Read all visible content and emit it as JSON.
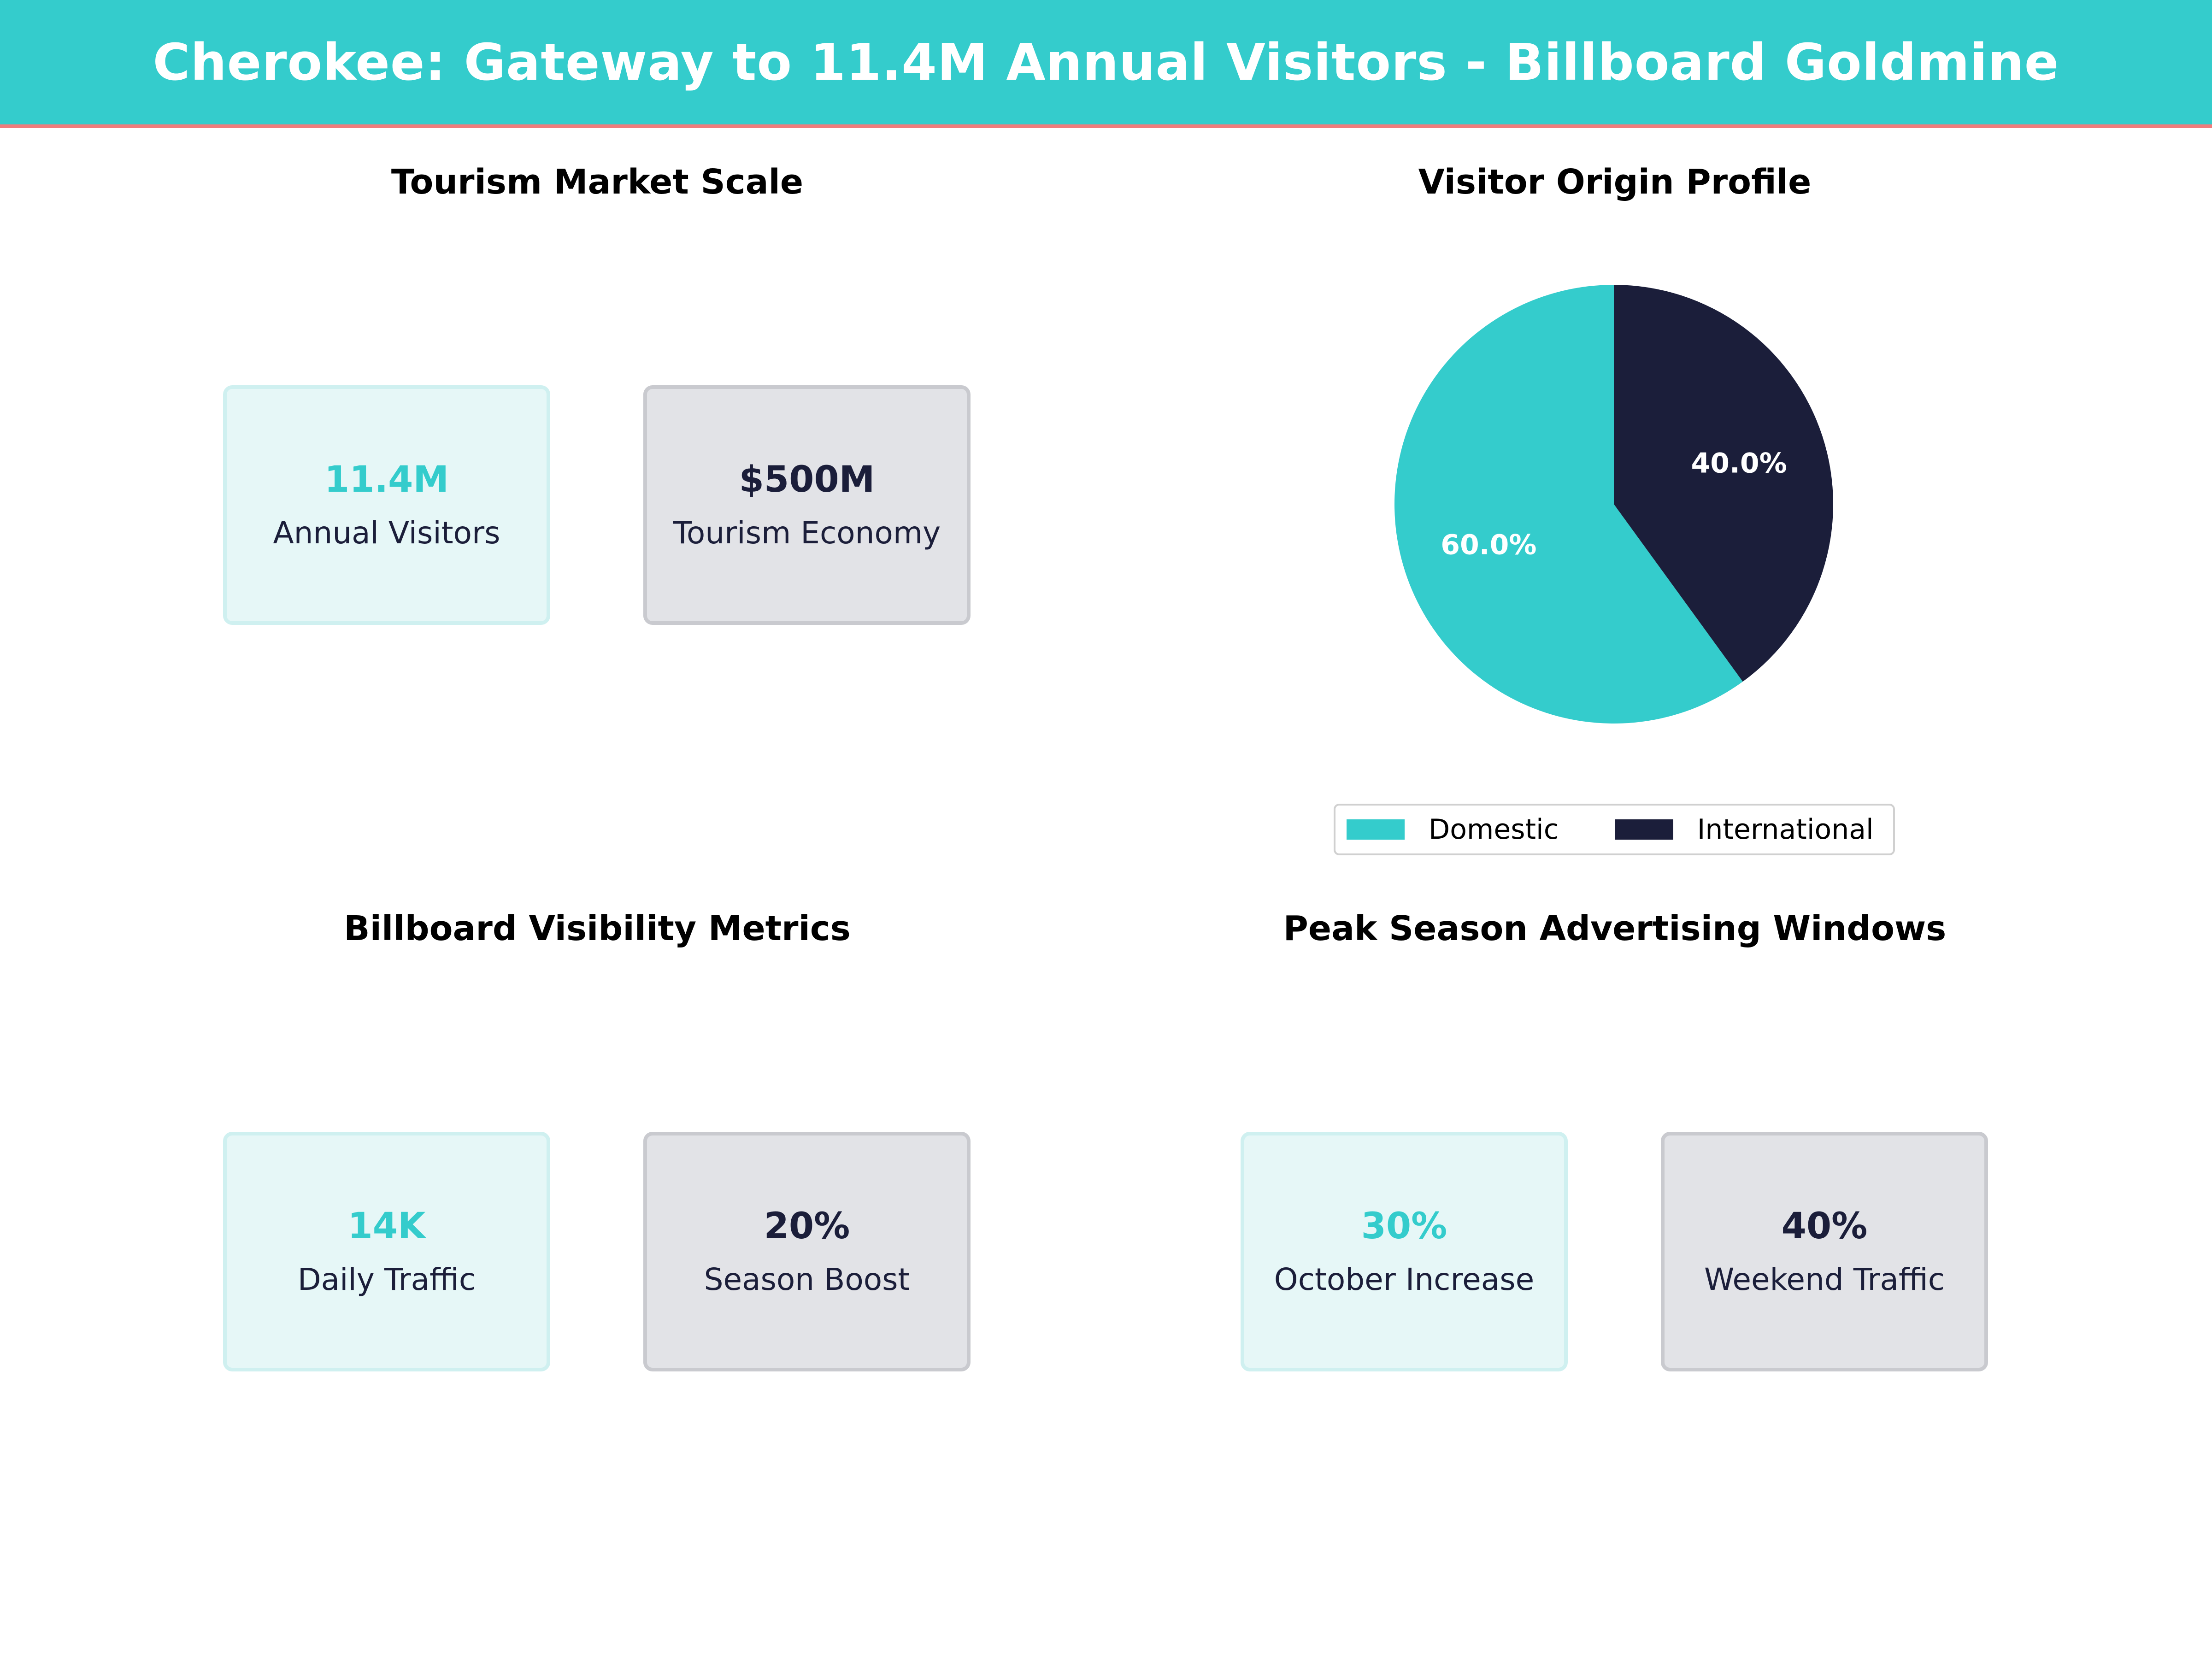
{
  "header": {
    "title": "Cherokee: Gateway to 11.4M Annual Visitors - Billboard Goldmine"
  },
  "colors": {
    "accent": "#34CCCC",
    "navy": "#1B1E3A",
    "header_rule": "#F07C7C"
  },
  "panels": {
    "market_scale": {
      "title": "Tourism Market Scale",
      "cards": [
        {
          "value": "11.4M",
          "label": "Annual Visitors"
        },
        {
          "value": "$500M",
          "label": "Tourism Economy"
        }
      ]
    },
    "visitor_origin": {
      "title": "Visitor Origin Profile"
    },
    "billboard_visibility": {
      "title": "Billboard Visibility Metrics",
      "cards": [
        {
          "value": "14K",
          "label": "Daily Traffic"
        },
        {
          "value": "20%",
          "label": "Season Boost"
        }
      ]
    },
    "peak_season": {
      "title": "Peak Season Advertising Windows",
      "cards": [
        {
          "value": "30%",
          "label": "October Increase"
        },
        {
          "value": "40%",
          "label": "Weekend Traffic"
        }
      ]
    }
  },
  "chart_data": {
    "type": "pie",
    "title": "Visitor Origin Profile",
    "categories": [
      "Domestic",
      "International"
    ],
    "values": [
      60.0,
      40.0
    ],
    "labels": [
      "60.0%",
      "40.0%"
    ],
    "colors": [
      "#34CCCC",
      "#1B1E3A"
    ],
    "start_angle_deg": 90,
    "direction": "counterclockwise",
    "legend_position": "bottom-center"
  }
}
